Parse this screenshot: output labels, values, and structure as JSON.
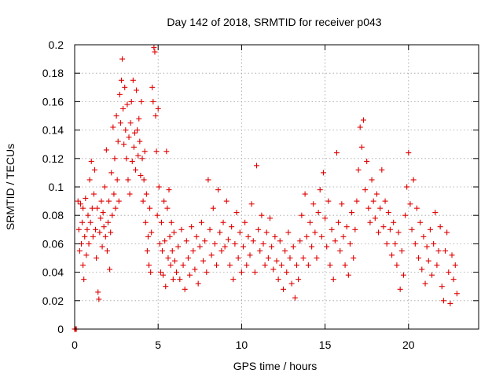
{
  "chart_data": {
    "type": "scatter",
    "title": "Day 142 of 2018, SRMTID for receiver p043",
    "xlabel": "GPS time / hours",
    "ylabel": "SRMTID / TECUs",
    "xlim": [
      0,
      24.2
    ],
    "ylim": [
      0,
      0.2
    ],
    "x_ticks": [
      0,
      5,
      10,
      15,
      20
    ],
    "y_ticks": [
      0,
      0.02,
      0.04,
      0.06,
      0.08,
      0.1,
      0.12,
      0.14,
      0.16,
      0.18,
      0.2
    ],
    "y_tick_labels": [
      "0",
      "0.02",
      "0.04",
      "0.06",
      "0.08",
      "0.1",
      "0.12",
      "0.14",
      "0.16",
      "0.18",
      "0.2"
    ],
    "grid": true,
    "marker": "+",
    "color": "#e00000",
    "series": [
      {
        "name": "SRMTID",
        "points": [
          [
            0.05,
            0.0
          ],
          [
            0.1,
            0.0
          ],
          [
            0.2,
            0.09
          ],
          [
            0.25,
            0.07
          ],
          [
            0.3,
            0.055
          ],
          [
            0.35,
            0.088
          ],
          [
            0.4,
            0.06
          ],
          [
            0.45,
            0.075
          ],
          [
            0.5,
            0.045
          ],
          [
            0.5,
            0.085
          ],
          [
            0.55,
            0.035
          ],
          [
            0.6,
            0.065
          ],
          [
            0.65,
            0.092
          ],
          [
            0.7,
            0.052
          ],
          [
            0.75,
            0.07
          ],
          [
            0.8,
            0.08
          ],
          [
            0.85,
            0.06
          ],
          [
            0.9,
            0.105
          ],
          [
            0.95,
            0.075
          ],
          [
            1.0,
            0.118
          ],
          [
            1.05,
            0.085
          ],
          [
            1.1,
            0.065
          ],
          [
            1.15,
            0.095
          ],
          [
            1.2,
            0.112
          ],
          [
            1.25,
            0.07
          ],
          [
            1.3,
            0.05
          ],
          [
            1.35,
            0.085
          ],
          [
            1.4,
            0.026
          ],
          [
            1.45,
            0.021
          ],
          [
            1.5,
            0.068
          ],
          [
            1.55,
            0.078
          ],
          [
            1.6,
            0.09
          ],
          [
            1.65,
            0.058
          ],
          [
            1.7,
            0.082
          ],
          [
            1.75,
            0.072
          ],
          [
            1.8,
            0.1
          ],
          [
            1.85,
            0.065
          ],
          [
            1.9,
            0.126
          ],
          [
            1.95,
            0.055
          ],
          [
            2.0,
            0.075
          ],
          [
            2.05,
            0.09
          ],
          [
            2.1,
            0.042
          ],
          [
            2.15,
            0.068
          ],
          [
            2.2,
            0.11
          ],
          [
            2.25,
            0.08
          ],
          [
            2.3,
            0.142
          ],
          [
            2.35,
            0.095
          ],
          [
            2.4,
            0.12
          ],
          [
            2.45,
            0.085
          ],
          [
            2.5,
            0.15
          ],
          [
            2.55,
            0.105
          ],
          [
            2.6,
            0.132
          ],
          [
            2.65,
            0.09
          ],
          [
            2.7,
            0.165
          ],
          [
            2.75,
            0.145
          ],
          [
            2.8,
            0.175
          ],
          [
            2.85,
            0.19
          ],
          [
            2.9,
            0.155
          ],
          [
            2.95,
            0.13
          ],
          [
            3.0,
            0.17
          ],
          [
            3.05,
            0.14
          ],
          [
            3.1,
            0.12
          ],
          [
            3.15,
            0.158
          ],
          [
            3.2,
            0.105
          ],
          [
            3.25,
            0.135
          ],
          [
            3.3,
            0.095
          ],
          [
            3.35,
            0.145
          ],
          [
            3.4,
            0.16
          ],
          [
            3.45,
            0.118
          ],
          [
            3.5,
            0.175
          ],
          [
            3.55,
            0.128
          ],
          [
            3.6,
            0.138
          ],
          [
            3.65,
            0.112
          ],
          [
            3.7,
            0.168
          ],
          [
            3.75,
            0.14
          ],
          [
            3.8,
            0.122
          ],
          [
            3.85,
            0.148
          ],
          [
            3.9,
            0.132
          ],
          [
            3.95,
            0.108
          ],
          [
            4.0,
            0.16
          ],
          [
            4.05,
            0.12
          ],
          [
            4.1,
            0.09
          ],
          [
            4.15,
            0.105
          ],
          [
            4.2,
            0.125
          ],
          [
            4.25,
            0.075
          ],
          [
            4.3,
            0.095
          ],
          [
            4.35,
            0.055
          ],
          [
            4.4,
            0.065
          ],
          [
            4.45,
            0.045
          ],
          [
            4.5,
            0.085
          ],
          [
            4.55,
            0.04
          ],
          [
            4.6,
            0.068
          ],
          [
            4.65,
            0.17
          ],
          [
            4.7,
            0.16
          ],
          [
            4.75,
            0.198
          ],
          [
            4.8,
            0.195
          ],
          [
            4.85,
            0.15
          ],
          [
            4.9,
            0.125
          ],
          [
            4.95,
            0.08
          ],
          [
            5.0,
            0.155
          ],
          [
            5.05,
            0.1
          ],
          [
            5.1,
            0.06
          ],
          [
            5.15,
            0.04
          ],
          [
            5.2,
            0.075
          ],
          [
            5.25,
            0.055
          ],
          [
            5.3,
            0.038
          ],
          [
            5.35,
            0.09
          ],
          [
            5.4,
            0.062
          ],
          [
            5.45,
            0.03
          ],
          [
            5.5,
            0.125
          ],
          [
            5.55,
            0.085
          ],
          [
            5.6,
            0.05
          ],
          [
            5.65,
            0.098
          ],
          [
            5.7,
            0.065
          ],
          [
            5.75,
            0.045
          ],
          [
            5.8,
            0.075
          ],
          [
            5.85,
            0.055
          ],
          [
            5.9,
            0.035
          ],
          [
            5.95,
            0.068
          ],
          [
            6.0,
            0.048
          ],
          [
            6.1,
            0.04
          ],
          [
            6.2,
            0.058
          ],
          [
            6.3,
            0.035
          ],
          [
            6.4,
            0.07
          ],
          [
            6.5,
            0.045
          ],
          [
            6.6,
            0.028
          ],
          [
            6.7,
            0.062
          ],
          [
            6.8,
            0.05
          ],
          [
            6.9,
            0.038
          ],
          [
            7.0,
            0.072
          ],
          [
            7.1,
            0.055
          ],
          [
            7.2,
            0.042
          ],
          [
            7.3,
            0.065
          ],
          [
            7.4,
            0.032
          ],
          [
            7.5,
            0.058
          ],
          [
            7.6,
            0.075
          ],
          [
            7.7,
            0.048
          ],
          [
            7.8,
            0.062
          ],
          [
            7.9,
            0.04
          ],
          [
            8.0,
            0.105
          ],
          [
            8.1,
            0.07
          ],
          [
            8.2,
            0.052
          ],
          [
            8.3,
            0.085
          ],
          [
            8.4,
            0.06
          ],
          [
            8.5,
            0.045
          ],
          [
            8.6,
            0.098
          ],
          [
            8.7,
            0.068
          ],
          [
            8.8,
            0.055
          ],
          [
            8.9,
            0.075
          ],
          [
            9.0,
            0.058
          ],
          [
            9.1,
            0.09
          ],
          [
            9.2,
            0.063
          ],
          [
            9.3,
            0.045
          ],
          [
            9.4,
            0.072
          ],
          [
            9.5,
            0.035
          ],
          [
            9.6,
            0.06
          ],
          [
            9.7,
            0.082
          ],
          [
            9.8,
            0.05
          ],
          [
            9.9,
            0.068
          ],
          [
            10.0,
            0.04
          ],
          [
            10.1,
            0.058
          ],
          [
            10.2,
            0.075
          ],
          [
            10.3,
            0.045
          ],
          [
            10.4,
            0.065
          ],
          [
            10.5,
            0.052
          ],
          [
            10.6,
            0.088
          ],
          [
            10.7,
            0.062
          ],
          [
            10.8,
            0.04
          ],
          [
            10.9,
            0.115
          ],
          [
            11.0,
            0.07
          ],
          [
            11.1,
            0.055
          ],
          [
            11.2,
            0.08
          ],
          [
            11.3,
            0.06
          ],
          [
            11.4,
            0.045
          ],
          [
            11.5,
            0.068
          ],
          [
            11.6,
            0.05
          ],
          [
            11.7,
            0.078
          ],
          [
            11.8,
            0.058
          ],
          [
            11.9,
            0.042
          ],
          [
            12.0,
            0.065
          ],
          [
            12.1,
            0.048
          ],
          [
            12.2,
            0.035
          ],
          [
            12.3,
            0.062
          ],
          [
            12.4,
            0.045
          ],
          [
            12.5,
            0.028
          ],
          [
            12.6,
            0.055
          ],
          [
            12.7,
            0.04
          ],
          [
            12.8,
            0.068
          ],
          [
            12.9,
            0.05
          ],
          [
            13.0,
            0.032
          ],
          [
            13.1,
            0.058
          ],
          [
            13.2,
            0.022
          ],
          [
            13.3,
            0.045
          ],
          [
            13.4,
            0.035
          ],
          [
            13.5,
            0.062
          ],
          [
            13.6,
            0.08
          ],
          [
            13.7,
            0.05
          ],
          [
            13.8,
            0.095
          ],
          [
            13.9,
            0.065
          ],
          [
            14.0,
            0.045
          ],
          [
            14.1,
            0.075
          ],
          [
            14.2,
            0.058
          ],
          [
            14.3,
            0.088
          ],
          [
            14.4,
            0.068
          ],
          [
            14.5,
            0.05
          ],
          [
            14.6,
            0.082
          ],
          [
            14.7,
            0.098
          ],
          [
            14.8,
            0.065
          ],
          [
            14.9,
            0.11
          ],
          [
            15.0,
            0.078
          ],
          [
            15.1,
            0.058
          ],
          [
            15.2,
            0.09
          ],
          [
            15.3,
            0.045
          ],
          [
            15.4,
            0.07
          ],
          [
            15.5,
            0.035
          ],
          [
            15.6,
            0.062
          ],
          [
            15.7,
            0.124
          ],
          [
            15.8,
            0.075
          ],
          [
            15.9,
            0.055
          ],
          [
            16.0,
            0.088
          ],
          [
            16.1,
            0.065
          ],
          [
            16.2,
            0.045
          ],
          [
            16.3,
            0.072
          ],
          [
            16.4,
            0.038
          ],
          [
            16.5,
            0.06
          ],
          [
            16.6,
            0.082
          ],
          [
            16.7,
            0.05
          ],
          [
            16.8,
            0.07
          ],
          [
            16.9,
            0.09
          ],
          [
            17.0,
            0.112
          ],
          [
            17.1,
            0.142
          ],
          [
            17.2,
            0.128
          ],
          [
            17.3,
            0.147
          ],
          [
            17.4,
            0.098
          ],
          [
            17.5,
            0.118
          ],
          [
            17.6,
            0.085
          ],
          [
            17.7,
            0.075
          ],
          [
            17.8,
            0.105
          ],
          [
            17.9,
            0.09
          ],
          [
            18.0,
            0.078
          ],
          [
            18.1,
            0.095
          ],
          [
            18.2,
            0.068
          ],
          [
            18.3,
            0.085
          ],
          [
            18.4,
            0.112
          ],
          [
            18.5,
            0.072
          ],
          [
            18.6,
            0.09
          ],
          [
            18.7,
            0.06
          ],
          [
            18.8,
            0.082
          ],
          [
            18.9,
            0.07
          ],
          [
            19.0,
            0.052
          ],
          [
            19.1,
            0.075
          ],
          [
            19.2,
            0.06
          ],
          [
            19.3,
            0.045
          ],
          [
            19.4,
            0.068
          ],
          [
            19.5,
            0.028
          ],
          [
            19.6,
            0.055
          ],
          [
            19.7,
            0.038
          ],
          [
            19.8,
            0.08
          ],
          [
            19.9,
            0.1
          ],
          [
            20.0,
            0.124
          ],
          [
            20.1,
            0.088
          ],
          [
            20.2,
            0.07
          ],
          [
            20.3,
            0.105
          ],
          [
            20.4,
            0.06
          ],
          [
            20.5,
            0.085
          ],
          [
            20.6,
            0.05
          ],
          [
            20.7,
            0.075
          ],
          [
            20.8,
            0.042
          ],
          [
            20.9,
            0.065
          ],
          [
            21.0,
            0.032
          ],
          [
            21.1,
            0.058
          ],
          [
            21.2,
            0.048
          ],
          [
            21.3,
            0.07
          ],
          [
            21.4,
            0.038
          ],
          [
            21.5,
            0.06
          ],
          [
            21.6,
            0.082
          ],
          [
            21.7,
            0.045
          ],
          [
            21.8,
            0.055
          ],
          [
            21.9,
            0.072
          ],
          [
            22.0,
            0.03
          ],
          [
            22.1,
            0.02
          ],
          [
            22.2,
            0.055
          ],
          [
            22.3,
            0.068
          ],
          [
            22.4,
            0.04
          ],
          [
            22.5,
            0.018
          ],
          [
            22.6,
            0.052
          ],
          [
            22.7,
            0.035
          ],
          [
            22.8,
            0.045
          ],
          [
            22.9,
            0.025
          ],
          [
            0.0,
            0.0
          ]
        ]
      }
    ]
  }
}
